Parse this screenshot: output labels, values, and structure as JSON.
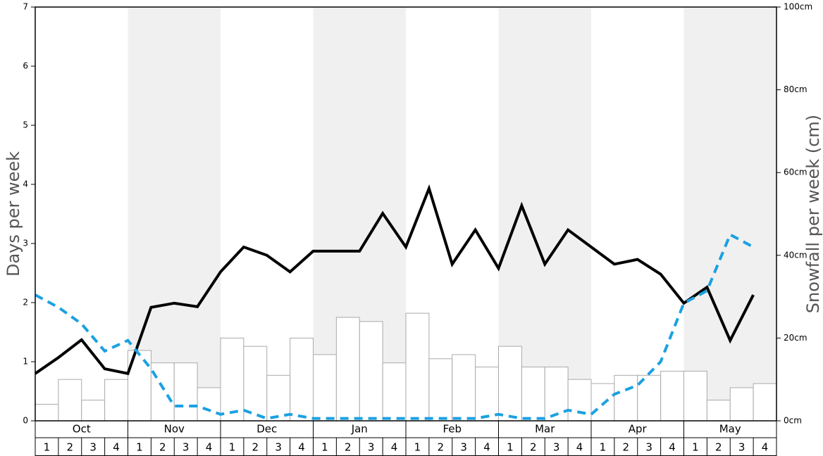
{
  "chart_data": {
    "type": "bar-line",
    "ylabel": "Days per week",
    "y2label": "Snowfall per week (cm)",
    "months": [
      "Oct",
      "Nov",
      "Dec",
      "Jan",
      "Feb",
      "Mar",
      "Apr",
      "May"
    ],
    "categories": [
      "1",
      "2",
      "3",
      "4",
      "1",
      "2",
      "3",
      "4",
      "1",
      "2",
      "3",
      "4",
      "1",
      "2",
      "3",
      "4",
      "1",
      "2",
      "3",
      "4",
      "1",
      "2",
      "3",
      "4",
      "1",
      "2",
      "3",
      "4",
      "1",
      "2",
      "3",
      "4"
    ],
    "ylim": [
      0,
      7
    ],
    "yticks": [
      0,
      1,
      2,
      3,
      4,
      5,
      6,
      7
    ],
    "y2lim": [
      0,
      100
    ],
    "y2ticks": [
      {
        "value": 0,
        "label": "0cm"
      },
      {
        "value": 20,
        "label": "20cm"
      },
      {
        "value": 40,
        "label": "40cm"
      },
      {
        "value": 60,
        "label": "60cm"
      },
      {
        "value": 80,
        "label": "80cm"
      },
      {
        "value": 100,
        "label": "100cm"
      }
    ],
    "series": [
      {
        "type": "bar",
        "axis": "y2",
        "color": "#ffffff",
        "values": [
          4,
          10,
          5,
          10,
          17,
          14,
          14,
          8,
          20,
          18,
          11,
          20,
          16,
          25,
          24,
          14,
          26,
          15,
          16,
          13,
          18,
          13,
          13,
          10,
          9,
          11,
          11,
          12,
          12,
          5,
          8,
          9
        ]
      },
      {
        "type": "line",
        "color": "#000000",
        "values": [
          0.8,
          1.07,
          1.37,
          0.88,
          0.8,
          1.92,
          1.99,
          1.93,
          2.52,
          2.94,
          2.8,
          2.52,
          2.87,
          2.87,
          2.87,
          3.51,
          2.94,
          3.93,
          2.65,
          3.23,
          2.58,
          3.64,
          2.65,
          3.23,
          2.94,
          2.65,
          2.73,
          2.48,
          1.99,
          2.26,
          1.36,
          2.13
        ]
      },
      {
        "type": "line",
        "dashed": true,
        "color": "#1ba1e2",
        "values": [
          2.13,
          1.92,
          1.64,
          1.18,
          1.36,
          0.88,
          0.25,
          0.25,
          0.11,
          0.18,
          0.04,
          0.11,
          0.04,
          0.04,
          0.04,
          0.04,
          0.04,
          0.04,
          0.04,
          0.04,
          0.11,
          0.04,
          0.04,
          0.18,
          0.11,
          0.45,
          0.6,
          1.0,
          1.99,
          2.2,
          3.15,
          2.94
        ]
      }
    ]
  }
}
